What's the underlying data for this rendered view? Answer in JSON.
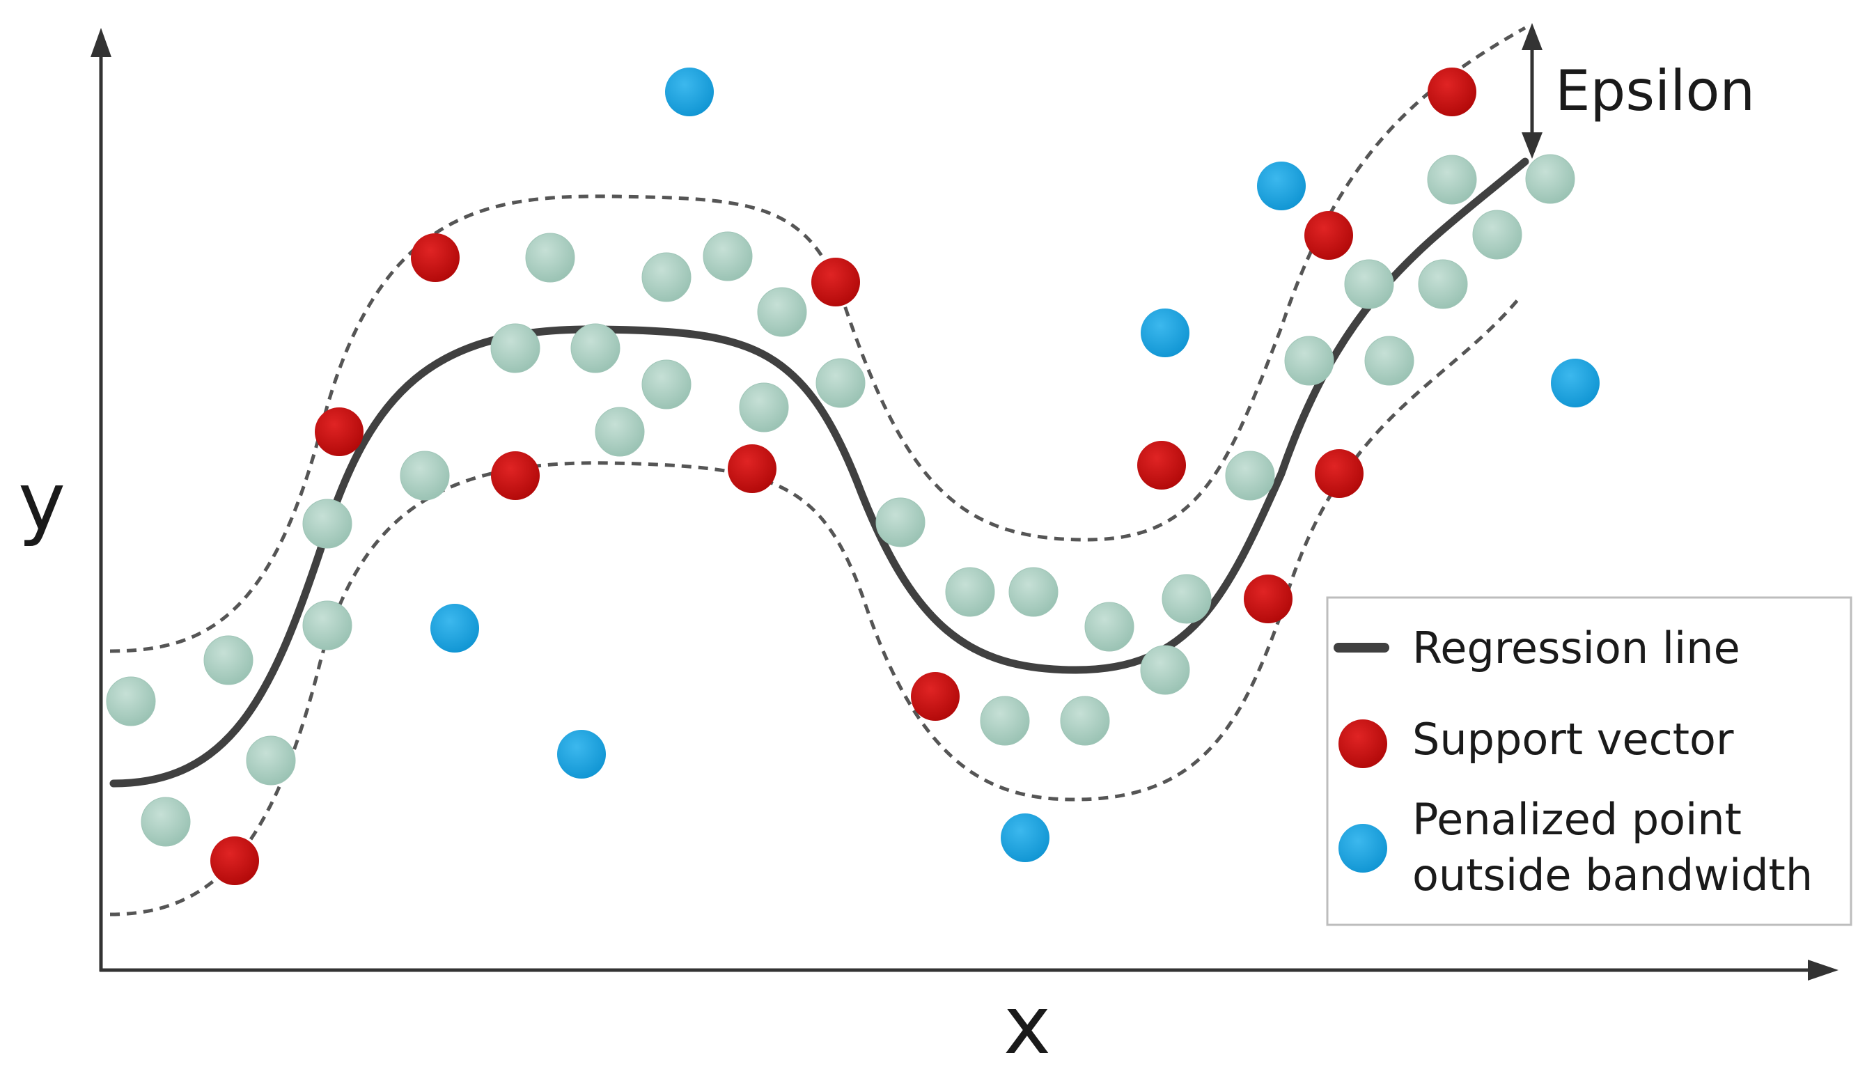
{
  "axes": {
    "x_label": "x",
    "y_label": "y"
  },
  "epsilon_label": "Epsilon",
  "legend": {
    "regression_line": "Regression line",
    "support_vector": "Support vector",
    "penalized_line1": "Penalized point",
    "penalized_line2": "outside bandwidth"
  },
  "colors": {
    "regression_line": "#404040",
    "band_lines": "#555555",
    "support_vector_fill": "#c40e0e",
    "penalized_fill": "#1aa2df",
    "inlier_fill": "#a9cdbf",
    "axis": "#333333"
  },
  "icons": {
    "epsilon_arrow": "double-headed-vertical-arrow",
    "x_axis_arrow": "arrowhead-right",
    "y_axis_arrow": "arrowhead-up"
  }
}
